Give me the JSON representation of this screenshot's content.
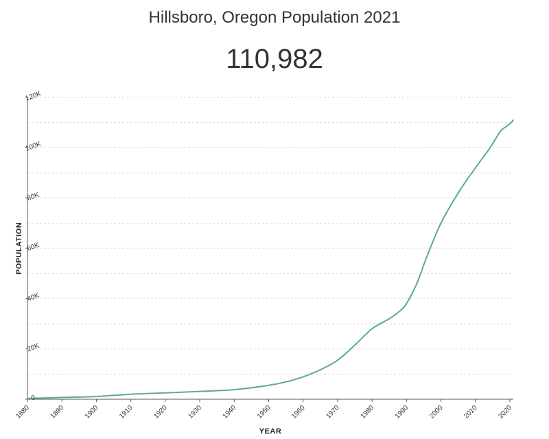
{
  "header": {
    "title": "Hillsboro, Oregon Population 2021",
    "value": "110,982"
  },
  "colors": {
    "line": "#5aaa94",
    "grid": "#d9d9d9",
    "axis": "#555555"
  },
  "chart_data": {
    "type": "line",
    "xlabel": "YEAR",
    "ylabel": "POPULATION",
    "xlim": [
      1880,
      2021
    ],
    "ylim": [
      0,
      120000
    ],
    "x_ticks": [
      1880,
      1890,
      1900,
      1910,
      1920,
      1930,
      1940,
      1950,
      1960,
      1970,
      1980,
      1990,
      2000,
      2010,
      2020
    ],
    "y_ticks": [
      0,
      20000,
      40000,
      60000,
      80000,
      100000,
      120000
    ],
    "y_tick_labels": [
      "0",
      "20K",
      "40K",
      "60K",
      "80K",
      "100K",
      "120K"
    ],
    "grid": true,
    "series": [
      {
        "x": [
          1880,
          1890,
          1900,
          1910,
          1920,
          1930,
          1940,
          1950,
          1955,
          1960,
          1965,
          1970,
          1975,
          1980,
          1985,
          1988,
          1990,
          1993,
          1996,
          2000,
          2005,
          2010,
          2014,
          2017,
          2018,
          2020,
          2021
        ],
        "values": [
          300,
          700,
          1100,
          2000,
          2500,
          3100,
          3800,
          5500,
          6900,
          8900,
          11700,
          15500,
          21500,
          28000,
          32000,
          35000,
          38000,
          46000,
          57000,
          70000,
          82000,
          92000,
          99500,
          106000,
          107500,
          109500,
          110982
        ]
      }
    ]
  }
}
